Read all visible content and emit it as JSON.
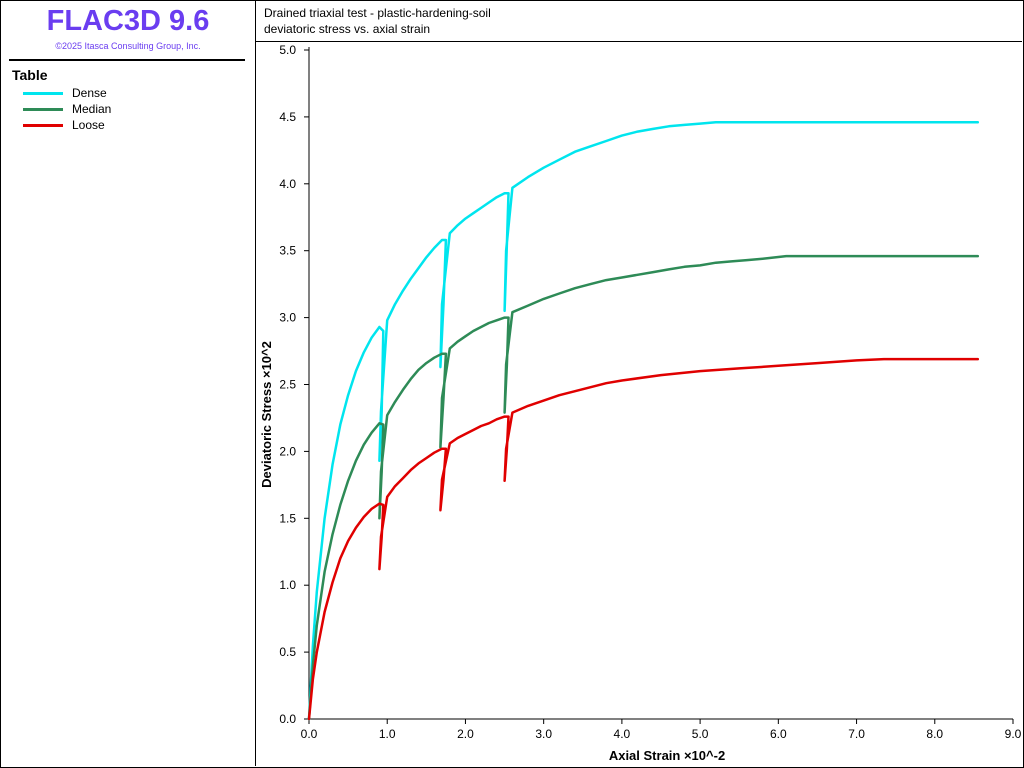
{
  "brand": {
    "title": "FLAC3D 9.6",
    "copyright": "©2025 Itasca Consulting Group, Inc.",
    "color": "#6a3df0"
  },
  "legend": {
    "title": "Table",
    "items": [
      {
        "label": "Dense",
        "color": "#00e5ee"
      },
      {
        "label": "Median",
        "color": "#2e8b57"
      },
      {
        "label": "Loose",
        "color": "#e00000"
      }
    ]
  },
  "plot_header": {
    "line1": "Drained triaxial test - plastic-hardening-soil",
    "line2": "deviatoric stress vs. axial strain"
  },
  "chart_data": {
    "type": "line",
    "xlabel": "Axial Strain ×10^-2",
    "ylabel": "Deviatoric Stress ×10^2",
    "xlim": [
      0,
      9
    ],
    "ylim": [
      0,
      5
    ],
    "xticks": [
      "0.0",
      "1.0",
      "2.0",
      "3.0",
      "4.0",
      "5.0",
      "6.0",
      "7.0",
      "8.0",
      "9.0"
    ],
    "yticks": [
      "0.0",
      "0.5",
      "1.0",
      "1.5",
      "2.0",
      "2.5",
      "3.0",
      "3.5",
      "4.0",
      "4.5",
      "5.0"
    ],
    "grid": false,
    "legend_position": "left panel",
    "series": [
      {
        "name": "Dense",
        "color": "#00e5ee",
        "x": [
          0,
          0.05,
          0.1,
          0.2,
          0.3,
          0.4,
          0.5,
          0.6,
          0.7,
          0.8,
          0.9,
          0.95,
          0.93,
          0.9,
          0.92,
          1.0,
          1.1,
          1.2,
          1.3,
          1.4,
          1.5,
          1.6,
          1.7,
          1.75,
          1.72,
          1.68,
          1.7,
          1.8,
          1.9,
          2.0,
          2.1,
          2.2,
          2.3,
          2.4,
          2.5,
          2.55,
          2.53,
          2.5,
          2.52,
          2.6,
          2.8,
          3.0,
          3.2,
          3.4,
          3.6,
          3.8,
          4.0,
          4.2,
          4.4,
          4.6,
          4.8,
          5.0,
          5.2,
          5.4,
          5.6,
          6.0,
          6.5,
          7.0,
          7.5,
          8.0,
          8.55
        ],
        "y": [
          0,
          0.55,
          0.95,
          1.5,
          1.9,
          2.2,
          2.42,
          2.6,
          2.74,
          2.85,
          2.93,
          2.9,
          2.3,
          1.93,
          2.3,
          2.98,
          3.1,
          3.2,
          3.29,
          3.37,
          3.45,
          3.52,
          3.58,
          3.58,
          3.1,
          2.63,
          3.1,
          3.63,
          3.69,
          3.74,
          3.78,
          3.82,
          3.86,
          3.9,
          3.93,
          3.93,
          3.55,
          3.05,
          3.5,
          3.97,
          4.05,
          4.12,
          4.18,
          4.24,
          4.28,
          4.32,
          4.36,
          4.39,
          4.41,
          4.43,
          4.44,
          4.45,
          4.46,
          4.46,
          4.46,
          4.46,
          4.46,
          4.46,
          4.46,
          4.46,
          4.46
        ]
      },
      {
        "name": "Median",
        "color": "#2e8b57",
        "x": [
          0,
          0.05,
          0.1,
          0.2,
          0.3,
          0.4,
          0.5,
          0.6,
          0.7,
          0.8,
          0.9,
          0.95,
          0.93,
          0.9,
          0.92,
          1.0,
          1.1,
          1.2,
          1.3,
          1.4,
          1.5,
          1.6,
          1.7,
          1.75,
          1.72,
          1.68,
          1.7,
          1.8,
          1.9,
          2.0,
          2.1,
          2.2,
          2.3,
          2.4,
          2.5,
          2.55,
          2.53,
          2.5,
          2.52,
          2.6,
          2.8,
          3.0,
          3.2,
          3.4,
          3.6,
          3.8,
          4.0,
          4.2,
          4.4,
          4.6,
          4.8,
          5.0,
          5.2,
          5.4,
          5.6,
          5.8,
          6.1,
          6.5,
          7.0,
          7.5,
          8.0,
          8.55
        ],
        "y": [
          0,
          0.4,
          0.7,
          1.1,
          1.38,
          1.6,
          1.78,
          1.93,
          2.05,
          2.14,
          2.21,
          2.2,
          1.85,
          1.5,
          1.85,
          2.27,
          2.37,
          2.46,
          2.54,
          2.61,
          2.66,
          2.7,
          2.73,
          2.73,
          2.4,
          2.03,
          2.4,
          2.77,
          2.82,
          2.86,
          2.9,
          2.93,
          2.96,
          2.98,
          3.0,
          3.0,
          2.65,
          2.29,
          2.65,
          3.04,
          3.09,
          3.14,
          3.18,
          3.22,
          3.25,
          3.28,
          3.3,
          3.32,
          3.34,
          3.36,
          3.38,
          3.39,
          3.41,
          3.42,
          3.43,
          3.44,
          3.46,
          3.46,
          3.46,
          3.46,
          3.46,
          3.46
        ]
      },
      {
        "name": "Loose",
        "color": "#e00000",
        "x": [
          0,
          0.05,
          0.1,
          0.2,
          0.3,
          0.4,
          0.5,
          0.6,
          0.7,
          0.8,
          0.9,
          0.95,
          0.93,
          0.9,
          0.92,
          1.0,
          1.1,
          1.2,
          1.3,
          1.4,
          1.5,
          1.6,
          1.7,
          1.75,
          1.72,
          1.68,
          1.7,
          1.8,
          1.9,
          2.0,
          2.1,
          2.2,
          2.3,
          2.4,
          2.5,
          2.55,
          2.53,
          2.5,
          2.52,
          2.6,
          2.8,
          3.0,
          3.2,
          3.4,
          3.6,
          3.8,
          4.0,
          4.5,
          5.0,
          5.5,
          6.0,
          6.5,
          7.0,
          7.35,
          8.0,
          8.55
        ],
        "y": [
          0,
          0.3,
          0.5,
          0.8,
          1.02,
          1.2,
          1.33,
          1.43,
          1.51,
          1.57,
          1.61,
          1.6,
          1.36,
          1.12,
          1.36,
          1.66,
          1.74,
          1.8,
          1.86,
          1.91,
          1.95,
          1.99,
          2.02,
          2.02,
          1.79,
          1.56,
          1.79,
          2.06,
          2.1,
          2.13,
          2.16,
          2.19,
          2.21,
          2.24,
          2.26,
          2.26,
          2.02,
          1.78,
          2.02,
          2.29,
          2.34,
          2.38,
          2.42,
          2.45,
          2.48,
          2.51,
          2.53,
          2.57,
          2.6,
          2.62,
          2.64,
          2.66,
          2.68,
          2.69,
          2.69,
          2.69
        ]
      }
    ]
  }
}
